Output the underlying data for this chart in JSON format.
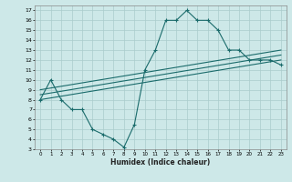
{
  "xlabel": "Humidex (Indice chaleur)",
  "bg_color": "#cde8e8",
  "grid_color": "#aacccc",
  "line_color": "#1a6b6b",
  "xlim": [
    -0.5,
    23.5
  ],
  "ylim": [
    3,
    17.5
  ],
  "line1_x": [
    0,
    1,
    2,
    3,
    4,
    5,
    6,
    7,
    8,
    9,
    10,
    11,
    12,
    13,
    14,
    15,
    16,
    17,
    18,
    19,
    20,
    21,
    22,
    23
  ],
  "line1_y": [
    8,
    10,
    8,
    7,
    7,
    5,
    4.5,
    4,
    3.2,
    5.5,
    11,
    13,
    16,
    16,
    17,
    16,
    16,
    15,
    13,
    13,
    12,
    12,
    12,
    11.5
  ],
  "line2_x": [
    0,
    23
  ],
  "line2_y": [
    9,
    13
  ],
  "line3_x": [
    0,
    23
  ],
  "line3_y": [
    8.5,
    12.5
  ],
  "line4_x": [
    0,
    23
  ],
  "line4_y": [
    8.0,
    12.0
  ],
  "yticks": [
    3,
    4,
    5,
    6,
    7,
    8,
    9,
    10,
    11,
    12,
    13,
    14,
    15,
    16,
    17
  ],
  "xticks": [
    0,
    1,
    2,
    3,
    4,
    5,
    6,
    7,
    8,
    9,
    10,
    11,
    12,
    13,
    14,
    15,
    16,
    17,
    18,
    19,
    20,
    21,
    22,
    23
  ]
}
